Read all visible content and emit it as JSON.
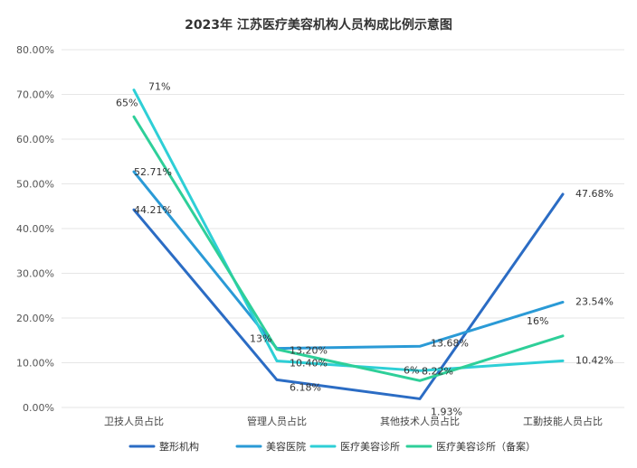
{
  "chart_data": {
    "type": "line",
    "title": "2023年 江苏医疗美容机构人员构成比例示意图",
    "categories": [
      "卫技人员占比",
      "管理人员占比",
      "其他技术人员占比",
      "工勤技能人员占比"
    ],
    "ylim": [
      0,
      80
    ],
    "yticks": [
      "0.00%",
      "10.00%",
      "20.00%",
      "30.00%",
      "40.00%",
      "50.00%",
      "60.00%",
      "70.00%",
      "80.00%"
    ],
    "grid": true,
    "legend": "bottom",
    "series": [
      {
        "name": "整形机构",
        "color": "#2b6cc4",
        "values": [
          44.21,
          6.18,
          1.93,
          47.68
        ],
        "labels": [
          "44.21%",
          "6.18%",
          "1.93%",
          "47.68%"
        ]
      },
      {
        "name": "美容医院",
        "color": "#2a9ad6",
        "values": [
          52.71,
          13.2,
          13.68,
          23.54
        ],
        "labels": [
          "52.71%",
          "13.20%",
          "13.68%",
          "23.54%"
        ]
      },
      {
        "name": "医疗美容诊所",
        "color": "#2ecfd6",
        "values": [
          71,
          10.4,
          8.22,
          10.42
        ],
        "labels": [
          "71%",
          "10.40%",
          "8.22%",
          "10.42%"
        ]
      },
      {
        "name": "医疗美容诊所（备案）",
        "color": "#2ecf99",
        "values": [
          65,
          13,
          6,
          16
        ],
        "labels": [
          "65%",
          "13%",
          "6%",
          "16%"
        ]
      }
    ]
  }
}
